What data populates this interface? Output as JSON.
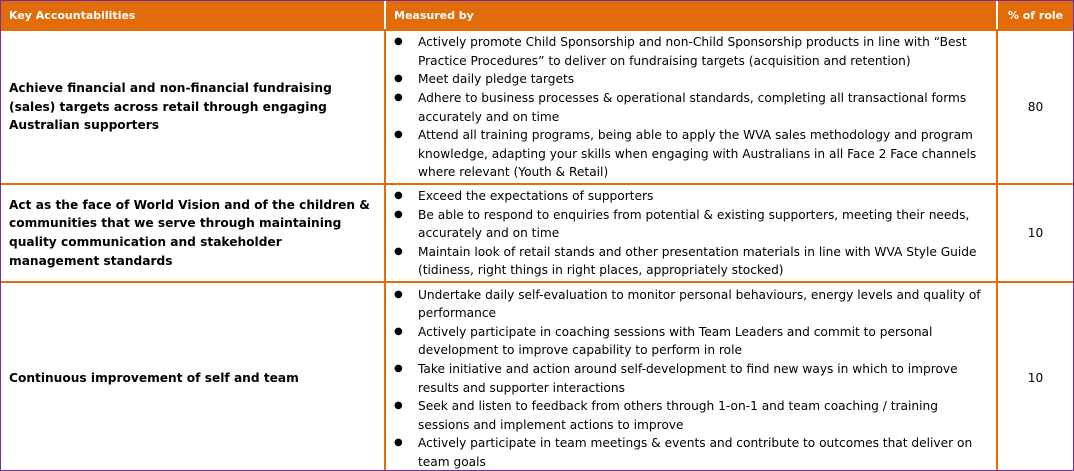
{
  "colors": {
    "header_bg": "#e36c0a",
    "header_text": "#ffffff",
    "grid_lines": "#e36c0a",
    "outer_border": "#7030a0"
  },
  "bullet_icon": "bullet-icon",
  "table": {
    "headers": {
      "accountabilities": "Key Accountabilities",
      "measured_by": "Measured by",
      "percent": "% of role"
    },
    "rows": [
      {
        "accountability": "Achieve financial and non-financial fundraising (sales) targets across retail through engaging Australian supporters",
        "measures": [
          "Actively promote Child Sponsorship and non-Child Sponsorship products in line with “Best Practice Procedures” to deliver on fundraising targets (acquisition and retention)",
          "Meet daily pledge targets",
          "Adhere to business processes & operational standards, completing all transactional forms accurately and on time",
          "Attend all training programs, being able to apply the WVA sales methodology and program knowledge, adapting your skills when engaging with Australians in all Face 2 Face channels where relevant (Youth & Retail)"
        ],
        "percent": "80"
      },
      {
        "accountability": "Act as the face of World Vision and of the children & communities that we serve through maintaining quality communication and stakeholder management standards",
        "measures": [
          "Exceed the expectations of supporters",
          "Be able to respond to enquiries from potential & existing supporters, meeting their needs, accurately and on time",
          "Maintain look of retail stands and other presentation materials in line with WVA Style Guide (tidiness, right things in right places, appropriately stocked)"
        ],
        "percent": "10"
      },
      {
        "accountability": "Continuous improvement of self and team",
        "measures": [
          "Undertake daily self-evaluation to monitor personal behaviours, energy levels and quality of performance",
          "Actively participate in coaching sessions with Team Leaders and commit to personal development to improve capability to perform in role",
          "Take initiative and action around self-development to find new ways in which to improve results and supporter interactions",
          "Seek and listen to feedback from others through 1-on-1 and team coaching / training sessions and implement actions to improve",
          "Actively participate in team meetings & events and contribute to outcomes that deliver on team goals"
        ],
        "percent": "10"
      }
    ]
  }
}
